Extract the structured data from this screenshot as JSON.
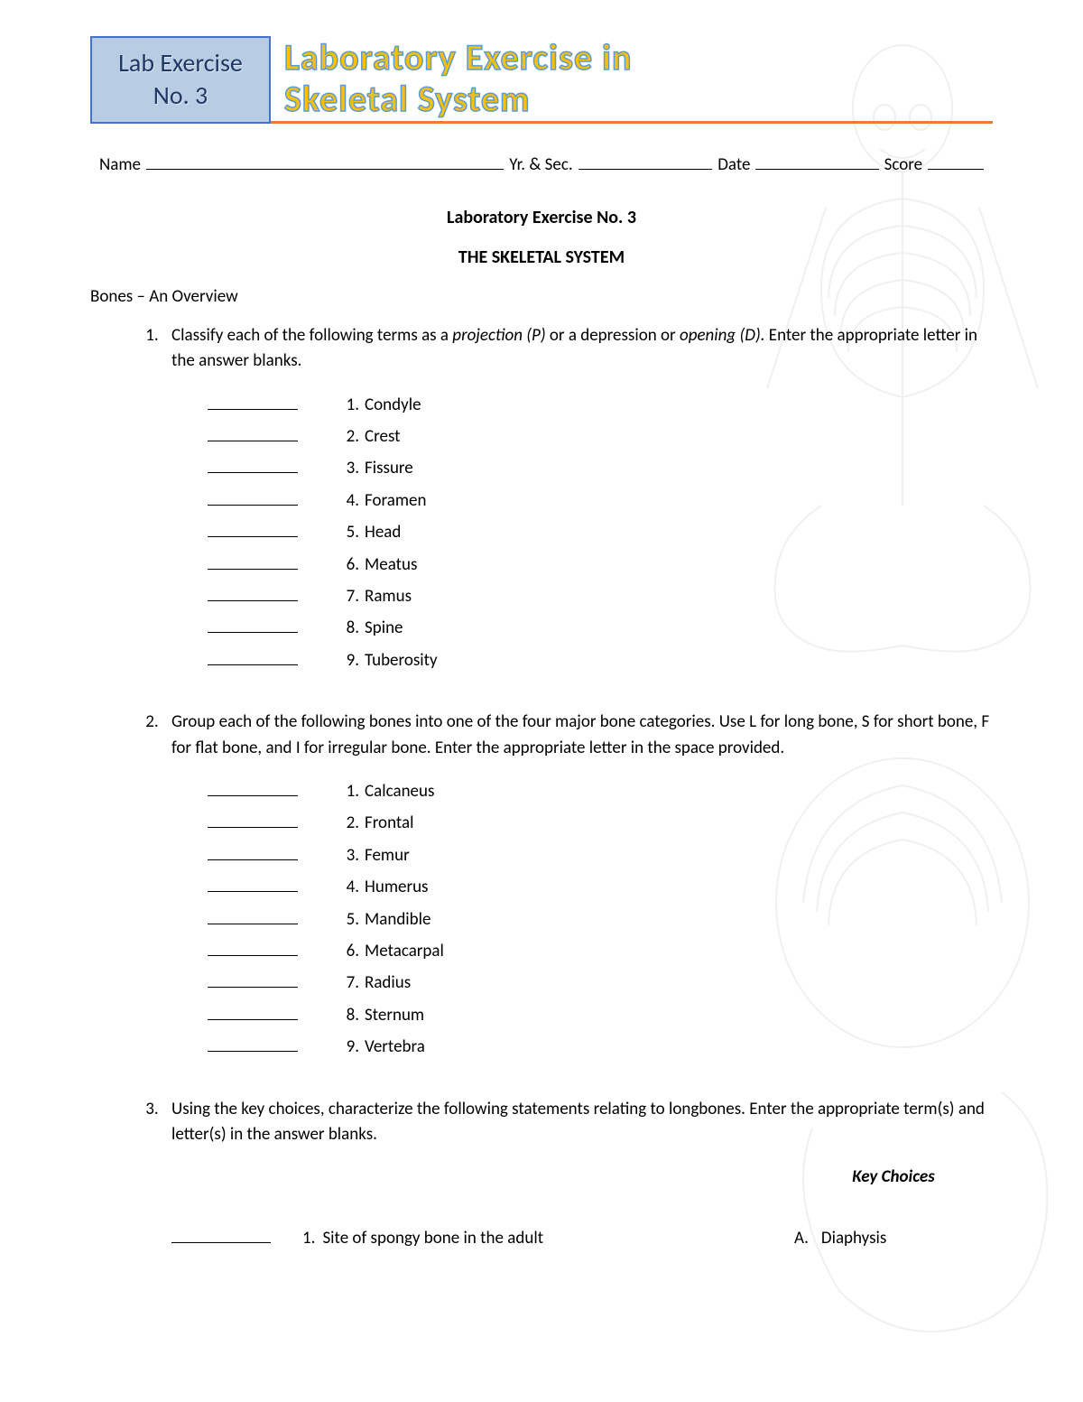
{
  "header": {
    "box_line1": "Lab Exercise",
    "box_line2": "No. 3",
    "title_line1": "Laboratory Exercise in",
    "title_line2": "Skeletal System",
    "box_bg": "#b8cce4",
    "box_border": "#4472c4",
    "title_fill": "#ffc000",
    "title_stroke": "#5b9bd5",
    "underline_color": "#ed7d31"
  },
  "info": {
    "name_label": "Name",
    "yr_label": "Yr. & Sec.",
    "date_label": "Date",
    "score_label": "Score"
  },
  "headings": {
    "h1": "Laboratory Exercise No. 3",
    "h2": "THE SKELETAL SYSTEM",
    "sub": "Bones – An Overview"
  },
  "q1": {
    "intro_a": "Classify each of the following terms as a ",
    "intro_em1": "projection (P)",
    "intro_b": " or a depression or ",
    "intro_em2": "opening (D).",
    "intro_c": " Enter the appropriate letter in the answer blanks.",
    "terms": [
      "Condyle",
      "Crest",
      "Fissure",
      "Foramen",
      "Head",
      "Meatus",
      "Ramus",
      "Spine",
      "Tuberosity"
    ]
  },
  "q2": {
    "intro": "Group each of the following bones into one of the four major bone categories.  Use L for long bone, S for short bone,  F for flat bone, and I for irregular bone.  Enter the appropriate letter in the space provided.",
    "terms": [
      "Calcaneus",
      "Frontal",
      "Femur",
      "Humerus",
      "Mandible",
      "Metacarpal",
      "Radius",
      "Sternum",
      "Vertebra"
    ]
  },
  "q3": {
    "intro": "Using the key choices, characterize the following statements relating to longbones.  Enter the appropriate term(s) and letter(s) in the answer blanks.",
    "key_head": "Key Choices",
    "stmt_num": "1.",
    "stmt_text": "Site of spongy bone in the adult",
    "key_letter": "A.",
    "key_term": "Diaphysis"
  }
}
